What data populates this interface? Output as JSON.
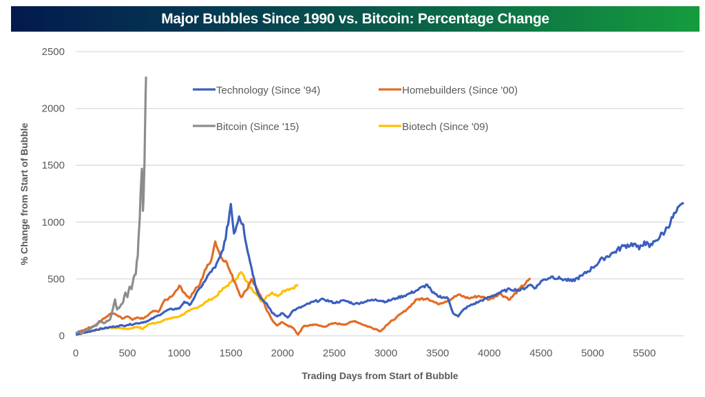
{
  "title": "Major Bubbles Since 1990 vs. Bitcoin: Percentage Change",
  "chart_data": {
    "type": "line",
    "title": "Major Bubbles Since 1990 vs. Bitcoin: Percentage Change",
    "xlabel": "Trading Days from Start of Bubble",
    "ylabel": "% Change from Start of Bubble",
    "xlim": [
      0,
      5880
    ],
    "ylim": [
      0,
      2500
    ],
    "xticks": [
      0,
      500,
      1000,
      1500,
      2000,
      2500,
      3000,
      3500,
      4000,
      4500,
      5000,
      5500
    ],
    "yticks": [
      0,
      500,
      1000,
      1500,
      2000,
      2500
    ],
    "grid": "horizontal",
    "legend_position": "top-center",
    "series": [
      {
        "name": "Technology (Since '94)",
        "color": "#3a5fbf",
        "points": [
          [
            0,
            10
          ],
          [
            100,
            30
          ],
          [
            200,
            55
          ],
          [
            300,
            70
          ],
          [
            400,
            85
          ],
          [
            500,
            95
          ],
          [
            600,
            110
          ],
          [
            700,
            130
          ],
          [
            800,
            180
          ],
          [
            900,
            230
          ],
          [
            1000,
            240
          ],
          [
            1050,
            300
          ],
          [
            1100,
            270
          ],
          [
            1150,
            340
          ],
          [
            1200,
            420
          ],
          [
            1250,
            480
          ],
          [
            1300,
            560
          ],
          [
            1350,
            600
          ],
          [
            1400,
            700
          ],
          [
            1450,
            850
          ],
          [
            1500,
            1160
          ],
          [
            1530,
            900
          ],
          [
            1580,
            1050
          ],
          [
            1620,
            980
          ],
          [
            1650,
            800
          ],
          [
            1700,
            600
          ],
          [
            1750,
            400
          ],
          [
            1800,
            320
          ],
          [
            1850,
            280
          ],
          [
            1900,
            200
          ],
          [
            1950,
            170
          ],
          [
            2000,
            200
          ],
          [
            2050,
            160
          ],
          [
            2100,
            220
          ],
          [
            2200,
            260
          ],
          [
            2300,
            300
          ],
          [
            2400,
            320
          ],
          [
            2500,
            290
          ],
          [
            2600,
            310
          ],
          [
            2700,
            280
          ],
          [
            2800,
            300
          ],
          [
            2900,
            320
          ],
          [
            3000,
            300
          ],
          [
            3100,
            330
          ],
          [
            3200,
            360
          ],
          [
            3300,
            400
          ],
          [
            3400,
            450
          ],
          [
            3450,
            380
          ],
          [
            3500,
            350
          ],
          [
            3600,
            330
          ],
          [
            3650,
            200
          ],
          [
            3700,
            170
          ],
          [
            3750,
            230
          ],
          [
            3800,
            260
          ],
          [
            3900,
            300
          ],
          [
            4000,
            340
          ],
          [
            4100,
            380
          ],
          [
            4200,
            410
          ],
          [
            4300,
            400
          ],
          [
            4400,
            450
          ],
          [
            4450,
            420
          ],
          [
            4500,
            480
          ],
          [
            4600,
            520
          ],
          [
            4700,
            500
          ],
          [
            4800,
            480
          ],
          [
            4900,
            530
          ],
          [
            5000,
            600
          ],
          [
            5100,
            680
          ],
          [
            5200,
            730
          ],
          [
            5300,
            790
          ],
          [
            5400,
            810
          ],
          [
            5450,
            760
          ],
          [
            5500,
            830
          ],
          [
            5550,
            780
          ],
          [
            5600,
            830
          ],
          [
            5700,
            920
          ],
          [
            5800,
            1080
          ],
          [
            5880,
            1160
          ]
        ]
      },
      {
        "name": "Homebuilders (Since '00)",
        "color": "#e36c25",
        "points": [
          [
            0,
            20
          ],
          [
            100,
            60
          ],
          [
            200,
            100
          ],
          [
            300,
            170
          ],
          [
            350,
            200
          ],
          [
            400,
            180
          ],
          [
            450,
            150
          ],
          [
            500,
            170
          ],
          [
            550,
            140
          ],
          [
            600,
            160
          ],
          [
            650,
            150
          ],
          [
            700,
            180
          ],
          [
            750,
            220
          ],
          [
            800,
            210
          ],
          [
            850,
            300
          ],
          [
            900,
            330
          ],
          [
            950,
            370
          ],
          [
            1000,
            440
          ],
          [
            1050,
            380
          ],
          [
            1100,
            330
          ],
          [
            1150,
            400
          ],
          [
            1200,
            450
          ],
          [
            1250,
            580
          ],
          [
            1300,
            640
          ],
          [
            1350,
            830
          ],
          [
            1400,
            700
          ],
          [
            1450,
            660
          ],
          [
            1500,
            550
          ],
          [
            1550,
            450
          ],
          [
            1600,
            340
          ],
          [
            1650,
            400
          ],
          [
            1700,
            500
          ],
          [
            1750,
            420
          ],
          [
            1800,
            330
          ],
          [
            1850,
            220
          ],
          [
            1900,
            140
          ],
          [
            1950,
            90
          ],
          [
            2000,
            120
          ],
          [
            2050,
            90
          ],
          [
            2100,
            70
          ],
          [
            2150,
            10
          ],
          [
            2200,
            80
          ],
          [
            2300,
            100
          ],
          [
            2400,
            80
          ],
          [
            2500,
            110
          ],
          [
            2600,
            100
          ],
          [
            2700,
            130
          ],
          [
            2800,
            90
          ],
          [
            2900,
            60
          ],
          [
            2950,
            40
          ],
          [
            3000,
            90
          ],
          [
            3100,
            160
          ],
          [
            3200,
            230
          ],
          [
            3300,
            320
          ],
          [
            3400,
            330
          ],
          [
            3500,
            280
          ],
          [
            3600,
            310
          ],
          [
            3700,
            360
          ],
          [
            3800,
            330
          ],
          [
            3900,
            350
          ],
          [
            4000,
            320
          ],
          [
            4100,
            370
          ],
          [
            4200,
            320
          ],
          [
            4300,
            420
          ],
          [
            4400,
            500
          ]
        ]
      },
      {
        "name": "Bitcoin (Since '15)",
        "color": "#8c8c8c",
        "points": [
          [
            0,
            20
          ],
          [
            30,
            40
          ],
          [
            60,
            20
          ],
          [
            100,
            50
          ],
          [
            150,
            70
          ],
          [
            200,
            90
          ],
          [
            230,
            130
          ],
          [
            270,
            110
          ],
          [
            300,
            130
          ],
          [
            330,
            140
          ],
          [
            360,
            240
          ],
          [
            380,
            320
          ],
          [
            400,
            230
          ],
          [
            430,
            260
          ],
          [
            460,
            300
          ],
          [
            480,
            380
          ],
          [
            500,
            340
          ],
          [
            520,
            430
          ],
          [
            540,
            410
          ],
          [
            560,
            510
          ],
          [
            580,
            540
          ],
          [
            590,
            650
          ],
          [
            600,
            700
          ],
          [
            610,
            900
          ],
          [
            620,
            1050
          ],
          [
            630,
            1300
          ],
          [
            640,
            1470
          ],
          [
            650,
            1100
          ],
          [
            660,
            1350
          ],
          [
            670,
            1800
          ],
          [
            680,
            2280
          ]
        ]
      },
      {
        "name": "Biotech (Since '09)",
        "color": "#ffc000",
        "points": [
          [
            0,
            10
          ],
          [
            100,
            30
          ],
          [
            200,
            50
          ],
          [
            300,
            70
          ],
          [
            400,
            70
          ],
          [
            500,
            60
          ],
          [
            600,
            80
          ],
          [
            650,
            60
          ],
          [
            700,
            100
          ],
          [
            800,
            120
          ],
          [
            900,
            150
          ],
          [
            1000,
            170
          ],
          [
            1100,
            220
          ],
          [
            1200,
            260
          ],
          [
            1300,
            320
          ],
          [
            1350,
            340
          ],
          [
            1400,
            390
          ],
          [
            1450,
            430
          ],
          [
            1500,
            470
          ],
          [
            1550,
            500
          ],
          [
            1600,
            560
          ],
          [
            1650,
            480
          ],
          [
            1700,
            420
          ],
          [
            1750,
            360
          ],
          [
            1800,
            300
          ],
          [
            1850,
            350
          ],
          [
            1900,
            380
          ],
          [
            1950,
            350
          ],
          [
            2000,
            390
          ],
          [
            2050,
            410
          ],
          [
            2100,
            420
          ],
          [
            2150,
            450
          ]
        ]
      }
    ]
  }
}
